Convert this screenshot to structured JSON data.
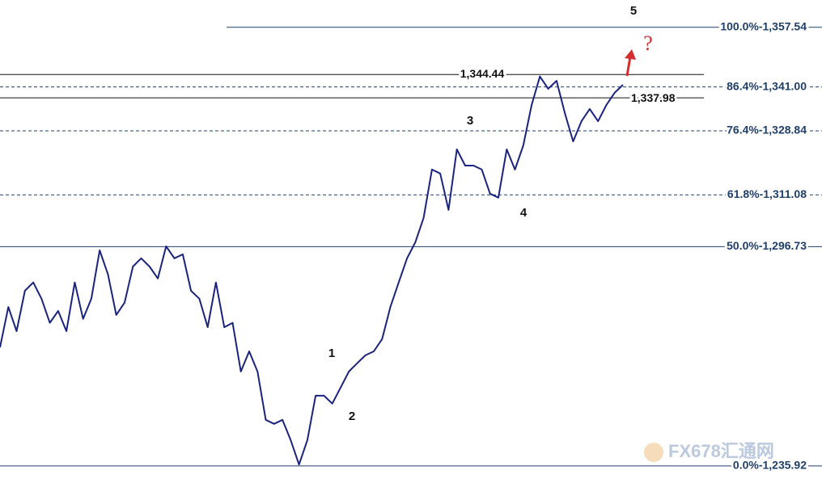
{
  "chart_data": {
    "type": "line",
    "color": "#1a237e",
    "ylim": [
      1231.2,
      1365.1
    ],
    "values": [
      1268.8,
      1280.0,
      1273.3,
      1284.5,
      1286.8,
      1282.3,
      1275.6,
      1278.9,
      1273.3,
      1286.8,
      1276.7,
      1282.3,
      1295.7,
      1289.0,
      1277.8,
      1281.2,
      1291.2,
      1293.5,
      1291.2,
      1287.9,
      1296.8,
      1293.5,
      1294.6,
      1284.5,
      1282.3,
      1274.4,
      1286.8,
      1274.4,
      1275.6,
      1262.1,
      1267.7,
      1262.1,
      1248.7,
      1247.6,
      1248.7,
      1243.1,
      1236.3,
      1243.1,
      1255.4,
      1255.4,
      1253.2,
      1257.6,
      1262.1,
      1264.4,
      1266.6,
      1267.7,
      1271.1,
      1280.0,
      1286.8,
      1293.5,
      1297.9,
      1304.7,
      1318.1,
      1317.0,
      1306.9,
      1323.7,
      1319.2,
      1319.2,
      1318.1,
      1311.4,
      1310.3,
      1323.7,
      1318.1,
      1324.8,
      1336.0,
      1343.9,
      1340.5,
      1342.7,
      1333.8,
      1325.9,
      1331.5,
      1334.9,
      1331.5,
      1336.0,
      1339.4,
      1341.6
    ],
    "levels": [
      {
        "value": 1357.54,
        "label": "100.0%-1,357.54",
        "style": "solid"
      },
      {
        "value": 1341.0,
        "label": "86.4%-1,341.00",
        "style": "dashed"
      },
      {
        "value": 1328.84,
        "label": "76.4%-1,328.84",
        "style": "dashed"
      },
      {
        "value": 1311.08,
        "label": "61.8%-1,311.08",
        "style": "dashed"
      },
      {
        "value": 1296.73,
        "label": "50.0%-1,296.73",
        "style": "solid"
      },
      {
        "value": 1235.92,
        "label": "0.0%-1,235.92",
        "style": "solid"
      }
    ],
    "level_color": "#1f3f6b",
    "price_lines": {
      "values": [
        1344.44,
        1337.98
      ],
      "value_labels": [
        "1,344.44",
        "1,337.98"
      ],
      "color": "#111111"
    },
    "annotations": [
      "1",
      "2",
      "3",
      "4",
      "5",
      "?"
    ],
    "annotation_color": "#d32f2f",
    "watermark": "FX678汇通网"
  }
}
